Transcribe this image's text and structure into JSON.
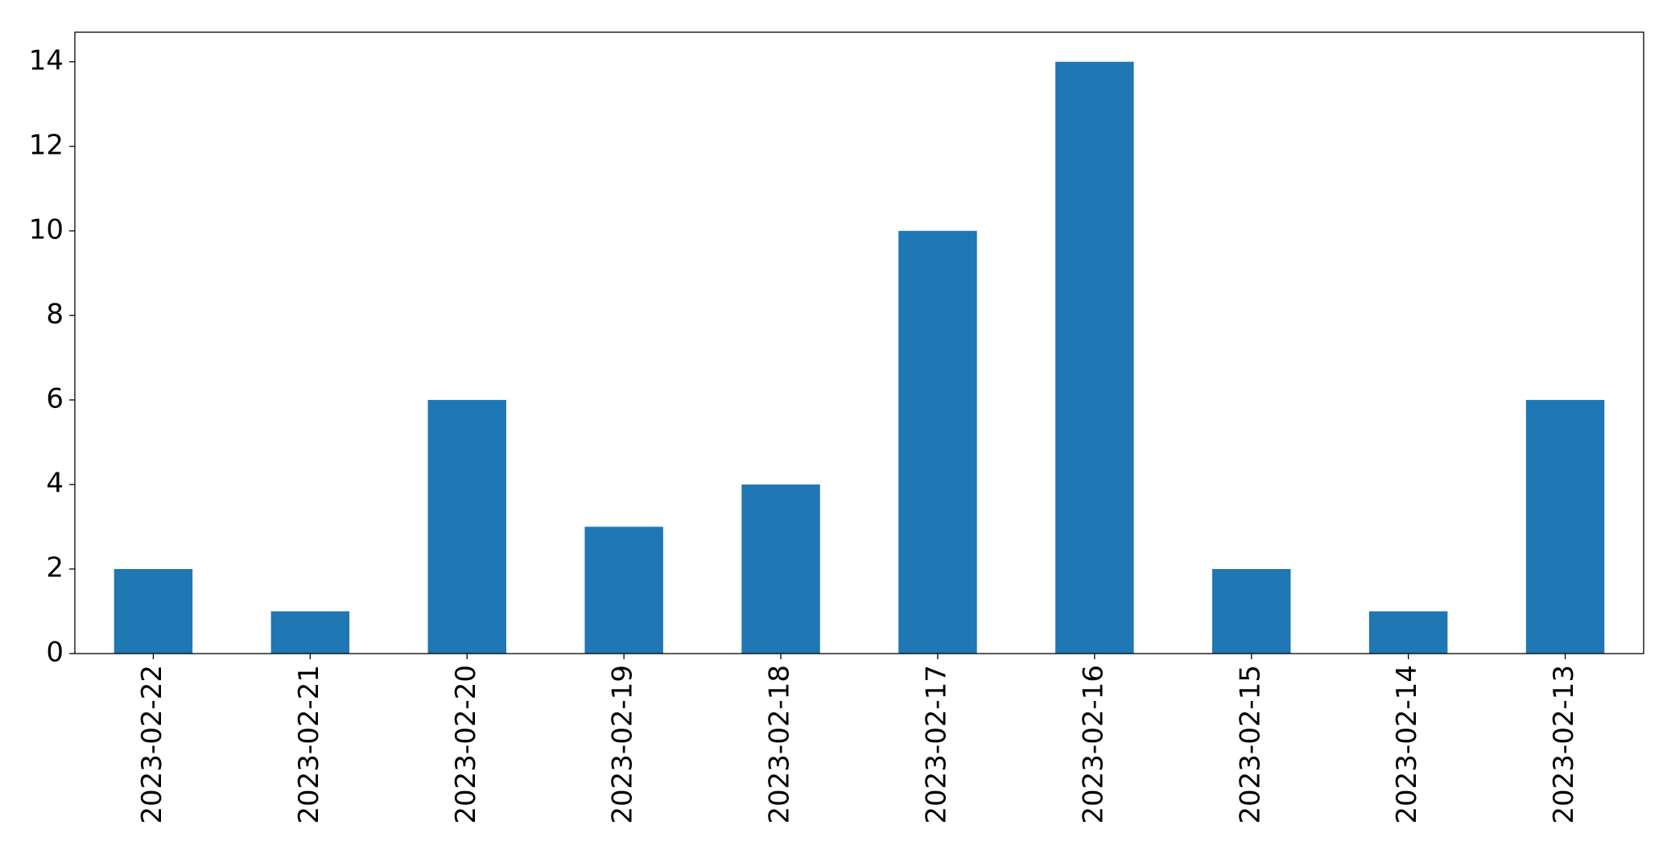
{
  "chart_data": {
    "type": "bar",
    "categories": [
      "2023-02-22",
      "2023-02-21",
      "2023-02-20",
      "2023-02-19",
      "2023-02-18",
      "2023-02-17",
      "2023-02-16",
      "2023-02-15",
      "2023-02-14",
      "2023-02-13"
    ],
    "values": [
      2,
      1,
      6,
      3,
      4,
      10,
      14,
      2,
      1,
      6
    ],
    "color": "#1f77b4",
    "ylim": [
      0,
      14.7
    ],
    "yticks": [
      0,
      2,
      4,
      6,
      8,
      10,
      12,
      14
    ],
    "grid": false
  }
}
